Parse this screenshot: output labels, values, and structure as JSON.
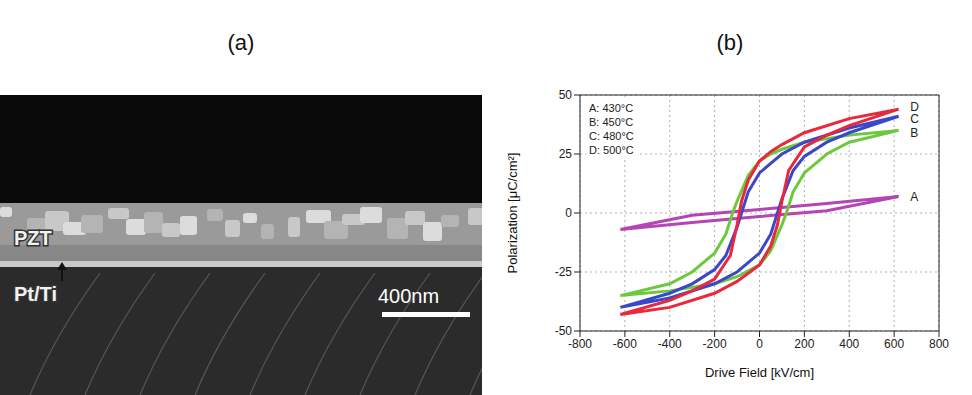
{
  "image_panel": {
    "panel": "(a)",
    "layer_labels": [
      "PZT",
      "Pt/Ti"
    ],
    "scale_bar": "400nm"
  },
  "chart_data": {
    "type": "line",
    "panel": "(b)",
    "x_label": "Drive Field [kV/cm]",
    "y_label": "Polarization [μC/cm²]",
    "xlim": [
      -800,
      800
    ],
    "xticks": [
      -800,
      -600,
      -400,
      -200,
      0,
      200,
      400,
      600,
      800
    ],
    "ylim": [
      -50,
      50
    ],
    "yticks": [
      -50,
      -25,
      0,
      25,
      50
    ],
    "grid": true,
    "legend": "upper left",
    "series": [
      {
        "name": "A: 430°C",
        "color": "#b545b5",
        "x": [
          620,
          300,
          0,
          -300,
          -620,
          -300,
          0,
          300,
          620
        ],
        "values": [
          7,
          4,
          1.5,
          -1,
          -7,
          -4,
          -1.5,
          1,
          7
        ]
      },
      {
        "name": "B: 450°C",
        "color": "#6cc83c",
        "x": [
          620,
          400,
          200,
          100,
          50,
          0,
          -50,
          -100,
          -120,
          -150,
          -200,
          -300,
          -400,
          -620,
          -400,
          -200,
          -100,
          0,
          50,
          100,
          120,
          150,
          200,
          300,
          400,
          620
        ],
        "values": [
          35,
          33,
          30,
          27,
          25,
          22,
          16,
          5,
          0,
          -9,
          -17,
          -25,
          -30,
          -35,
          -33,
          -30,
          -27,
          -22,
          -16,
          -5,
          0,
          9,
          17,
          25,
          30,
          35
        ]
      },
      {
        "name": "C: 480°C",
        "color": "#3a48c8",
        "x": [
          620,
          400,
          200,
          100,
          50,
          0,
          -50,
          -80,
          -100,
          -150,
          -200,
          -300,
          -400,
          -620,
          -400,
          -200,
          -100,
          0,
          50,
          80,
          100,
          150,
          200,
          300,
          400,
          620
        ],
        "values": [
          41,
          36,
          30,
          25,
          21,
          17,
          9,
          0,
          -6,
          -18,
          -24,
          -30,
          -34,
          -40,
          -36,
          -30,
          -25,
          -17,
          -9,
          0,
          6,
          18,
          24,
          30,
          34,
          41
        ]
      },
      {
        "name": "D: 500°C",
        "color": "#e8283c",
        "x": [
          620,
          400,
          200,
          100,
          50,
          0,
          -50,
          -80,
          -100,
          -130,
          -200,
          -300,
          -400,
          -620,
          -400,
          -200,
          -100,
          0,
          50,
          80,
          100,
          130,
          200,
          300,
          400,
          620
        ],
        "values": [
          44,
          40,
          34,
          29,
          26,
          22,
          14,
          5,
          -5,
          -18,
          -28,
          -33,
          -37,
          -43,
          -40,
          -34,
          -29,
          -22,
          -14,
          -5,
          5,
          18,
          28,
          33,
          37,
          44
        ]
      }
    ],
    "annotations": [
      {
        "text": "D",
        "x": 650,
        "y": 45
      },
      {
        "text": "C",
        "x": 650,
        "y": 40
      },
      {
        "text": "B",
        "x": 650,
        "y": 34
      },
      {
        "text": "A",
        "x": 650,
        "y": 7
      }
    ]
  }
}
